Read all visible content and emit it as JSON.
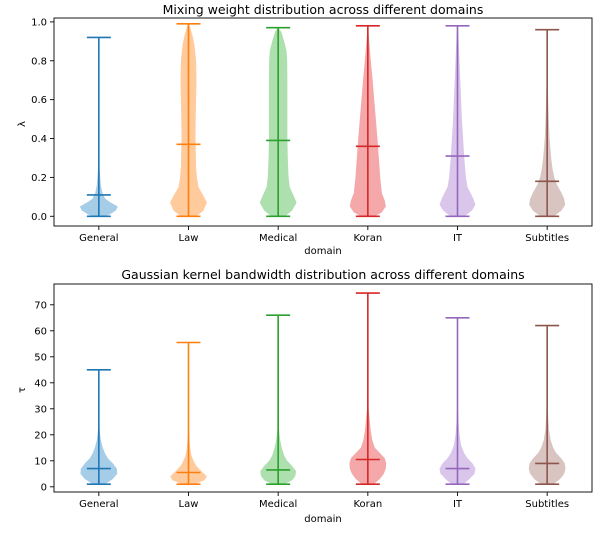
{
  "chart_data": [
    {
      "type": "violin",
      "title": "Mixing weight distribution across different domains",
      "xlabel": "domain",
      "ylabel": "λ",
      "ylim": [
        -0.05,
        1.02
      ],
      "yticks": [
        0.0,
        0.2,
        0.4,
        0.6,
        0.8,
        1.0
      ],
      "ytick_labels": [
        "0.0",
        "0.2",
        "0.4",
        "0.6",
        "0.8",
        "1.0"
      ],
      "categories": [
        "General",
        "Law",
        "Medical",
        "Koran",
        "IT",
        "Subtitles"
      ],
      "colors": [
        "#1f77b4",
        "#ff7f0e",
        "#2ca02c",
        "#d62728",
        "#9467bd",
        "#8c564b"
      ],
      "fill_colors": [
        "#a6cde7",
        "#ffcb9d",
        "#aedfae",
        "#f4a8a9",
        "#dac6ea",
        "#d8c4c0"
      ],
      "series": [
        {
          "name": "General",
          "min": 0.0,
          "mean": 0.11,
          "max": 0.92,
          "profile": [
            [
              0.0,
              0.3
            ],
            [
              0.01,
              0.55
            ],
            [
              0.03,
              0.85
            ],
            [
              0.05,
              0.95
            ],
            [
              0.07,
              0.6
            ],
            [
              0.09,
              0.32
            ],
            [
              0.12,
              0.18
            ],
            [
              0.16,
              0.1
            ],
            [
              0.2,
              0.07
            ],
            [
              0.25,
              0.04
            ],
            [
              0.32,
              0.02
            ],
            [
              0.4,
              0.01
            ],
            [
              0.5,
              0.006
            ],
            [
              0.6,
              0.003
            ],
            [
              0.92,
              0.0
            ]
          ]
        },
        {
          "name": "Law",
          "min": 0.0,
          "mean": 0.37,
          "max": 0.99,
          "profile": [
            [
              0.0,
              0.4
            ],
            [
              0.03,
              0.75
            ],
            [
              0.07,
              0.92
            ],
            [
              0.1,
              0.78
            ],
            [
              0.15,
              0.5
            ],
            [
              0.2,
              0.42
            ],
            [
              0.25,
              0.38
            ],
            [
              0.3,
              0.37
            ],
            [
              0.4,
              0.35
            ],
            [
              0.5,
              0.36
            ],
            [
              0.6,
              0.38
            ],
            [
              0.7,
              0.4
            ],
            [
              0.8,
              0.38
            ],
            [
              0.88,
              0.3
            ],
            [
              0.93,
              0.2
            ],
            [
              0.97,
              0.09
            ],
            [
              0.99,
              0.0
            ]
          ]
        },
        {
          "name": "Medical",
          "min": 0.0,
          "mean": 0.39,
          "max": 0.97,
          "profile": [
            [
              0.0,
              0.35
            ],
            [
              0.03,
              0.7
            ],
            [
              0.07,
              0.92
            ],
            [
              0.1,
              0.8
            ],
            [
              0.15,
              0.58
            ],
            [
              0.2,
              0.52
            ],
            [
              0.3,
              0.48
            ],
            [
              0.4,
              0.46
            ],
            [
              0.5,
              0.46
            ],
            [
              0.6,
              0.46
            ],
            [
              0.7,
              0.46
            ],
            [
              0.8,
              0.45
            ],
            [
              0.85,
              0.42
            ],
            [
              0.9,
              0.3
            ],
            [
              0.95,
              0.15
            ],
            [
              0.97,
              0.0
            ]
          ]
        },
        {
          "name": "Koran",
          "min": 0.0,
          "mean": 0.36,
          "max": 0.98,
          "profile": [
            [
              0.0,
              0.35
            ],
            [
              0.02,
              0.7
            ],
            [
              0.05,
              0.9
            ],
            [
              0.08,
              0.85
            ],
            [
              0.12,
              0.7
            ],
            [
              0.2,
              0.62
            ],
            [
              0.3,
              0.55
            ],
            [
              0.4,
              0.48
            ],
            [
              0.5,
              0.4
            ],
            [
              0.6,
              0.32
            ],
            [
              0.7,
              0.24
            ],
            [
              0.8,
              0.15
            ],
            [
              0.9,
              0.07
            ],
            [
              0.95,
              0.03
            ],
            [
              0.98,
              0.0
            ]
          ]
        },
        {
          "name": "IT",
          "min": 0.0,
          "mean": 0.31,
          "max": 0.98,
          "profile": [
            [
              0.0,
              0.35
            ],
            [
              0.03,
              0.72
            ],
            [
              0.06,
              0.9
            ],
            [
              0.1,
              0.75
            ],
            [
              0.15,
              0.5
            ],
            [
              0.2,
              0.42
            ],
            [
              0.3,
              0.34
            ],
            [
              0.4,
              0.28
            ],
            [
              0.5,
              0.22
            ],
            [
              0.6,
              0.18
            ],
            [
              0.7,
              0.14
            ],
            [
              0.8,
              0.1
            ],
            [
              0.9,
              0.06
            ],
            [
              0.95,
              0.04
            ],
            [
              0.98,
              0.0
            ]
          ]
        },
        {
          "name": "Subtitles",
          "min": 0.0,
          "mean": 0.18,
          "max": 0.96,
          "profile": [
            [
              0.0,
              0.35
            ],
            [
              0.03,
              0.72
            ],
            [
              0.06,
              0.9
            ],
            [
              0.09,
              0.85
            ],
            [
              0.12,
              0.72
            ],
            [
              0.16,
              0.5
            ],
            [
              0.2,
              0.35
            ],
            [
              0.25,
              0.26
            ],
            [
              0.3,
              0.2
            ],
            [
              0.4,
              0.12
            ],
            [
              0.5,
              0.08
            ],
            [
              0.6,
              0.05
            ],
            [
              0.7,
              0.03
            ],
            [
              0.8,
              0.015
            ],
            [
              0.96,
              0.0
            ]
          ]
        }
      ]
    },
    {
      "type": "violin",
      "title": "Gaussian kernel bandwidth distribution across different domains",
      "xlabel": "domain",
      "ylabel": "τ",
      "ylim": [
        -2.0,
        78.0
      ],
      "yticks": [
        0,
        10,
        20,
        30,
        40,
        50,
        60,
        70
      ],
      "ytick_labels": [
        "0",
        "10",
        "20",
        "30",
        "40",
        "50",
        "60",
        "70"
      ],
      "categories": [
        "General",
        "Law",
        "Medical",
        "Koran",
        "IT",
        "Subtitles"
      ],
      "colors": [
        "#1f77b4",
        "#ff7f0e",
        "#2ca02c",
        "#d62728",
        "#9467bd",
        "#8c564b"
      ],
      "fill_colors": [
        "#a6cde7",
        "#ffcb9d",
        "#aedfae",
        "#f4a8a9",
        "#dac6ea",
        "#d8c4c0"
      ],
      "series": [
        {
          "name": "General",
          "min": 1,
          "mean": 7,
          "max": 45,
          "profile": [
            [
              1,
              0.3
            ],
            [
              3,
              0.7
            ],
            [
              5,
              0.92
            ],
            [
              7,
              0.9
            ],
            [
              9,
              0.7
            ],
            [
              11,
              0.45
            ],
            [
              13,
              0.3
            ],
            [
              15,
              0.2
            ],
            [
              18,
              0.1
            ],
            [
              22,
              0.04
            ],
            [
              28,
              0.015
            ],
            [
              35,
              0.006
            ],
            [
              45,
              0.0
            ]
          ]
        },
        {
          "name": "Law",
          "min": 1,
          "mean": 5.5,
          "max": 55.5,
          "profile": [
            [
              1,
              0.3
            ],
            [
              2.5,
              0.8
            ],
            [
              4,
              0.92
            ],
            [
              6,
              0.65
            ],
            [
              8,
              0.4
            ],
            [
              10,
              0.25
            ],
            [
              12,
              0.15
            ],
            [
              15,
              0.08
            ],
            [
              20,
              0.03
            ],
            [
              30,
              0.01
            ],
            [
              40,
              0.004
            ],
            [
              55.5,
              0.0
            ]
          ]
        },
        {
          "name": "Medical",
          "min": 1,
          "mean": 6.5,
          "max": 66,
          "profile": [
            [
              1,
              0.3
            ],
            [
              2.5,
              0.7
            ],
            [
              4,
              0.85
            ],
            [
              6,
              0.9
            ],
            [
              8,
              0.7
            ],
            [
              10,
              0.45
            ],
            [
              12,
              0.3
            ],
            [
              15,
              0.18
            ],
            [
              18,
              0.1
            ],
            [
              22,
              0.04
            ],
            [
              30,
              0.015
            ],
            [
              45,
              0.005
            ],
            [
              66,
              0.0
            ]
          ]
        },
        {
          "name": "Koran",
          "min": 1,
          "mean": 10.5,
          "max": 74.5,
          "profile": [
            [
              1,
              0.3
            ],
            [
              3,
              0.6
            ],
            [
              5,
              0.8
            ],
            [
              7,
              0.9
            ],
            [
              9,
              0.92
            ],
            [
              11,
              0.85
            ],
            [
              13,
              0.6
            ],
            [
              15,
              0.35
            ],
            [
              18,
              0.22
            ],
            [
              22,
              0.14
            ],
            [
              26,
              0.09
            ],
            [
              30,
              0.04
            ],
            [
              35,
              0.02
            ],
            [
              45,
              0.008
            ],
            [
              60,
              0.003
            ],
            [
              74.5,
              0.0
            ]
          ]
        },
        {
          "name": "IT",
          "min": 1,
          "mean": 7,
          "max": 65,
          "profile": [
            [
              1,
              0.3
            ],
            [
              3,
              0.6
            ],
            [
              5,
              0.85
            ],
            [
              7,
              0.9
            ],
            [
              9,
              0.75
            ],
            [
              11,
              0.5
            ],
            [
              13,
              0.33
            ],
            [
              16,
              0.18
            ],
            [
              20,
              0.1
            ],
            [
              25,
              0.05
            ],
            [
              30,
              0.025
            ],
            [
              40,
              0.01
            ],
            [
              65,
              0.0
            ]
          ]
        },
        {
          "name": "Subtitles",
          "min": 1,
          "mean": 9,
          "max": 62,
          "profile": [
            [
              1,
              0.3
            ],
            [
              3,
              0.65
            ],
            [
              5,
              0.85
            ],
            [
              7,
              0.92
            ],
            [
              9,
              0.88
            ],
            [
              11,
              0.7
            ],
            [
              13,
              0.45
            ],
            [
              15,
              0.3
            ],
            [
              18,
              0.17
            ],
            [
              22,
              0.09
            ],
            [
              27,
              0.05
            ],
            [
              32,
              0.025
            ],
            [
              40,
              0.01
            ],
            [
              62,
              0.0
            ]
          ]
        }
      ]
    }
  ]
}
